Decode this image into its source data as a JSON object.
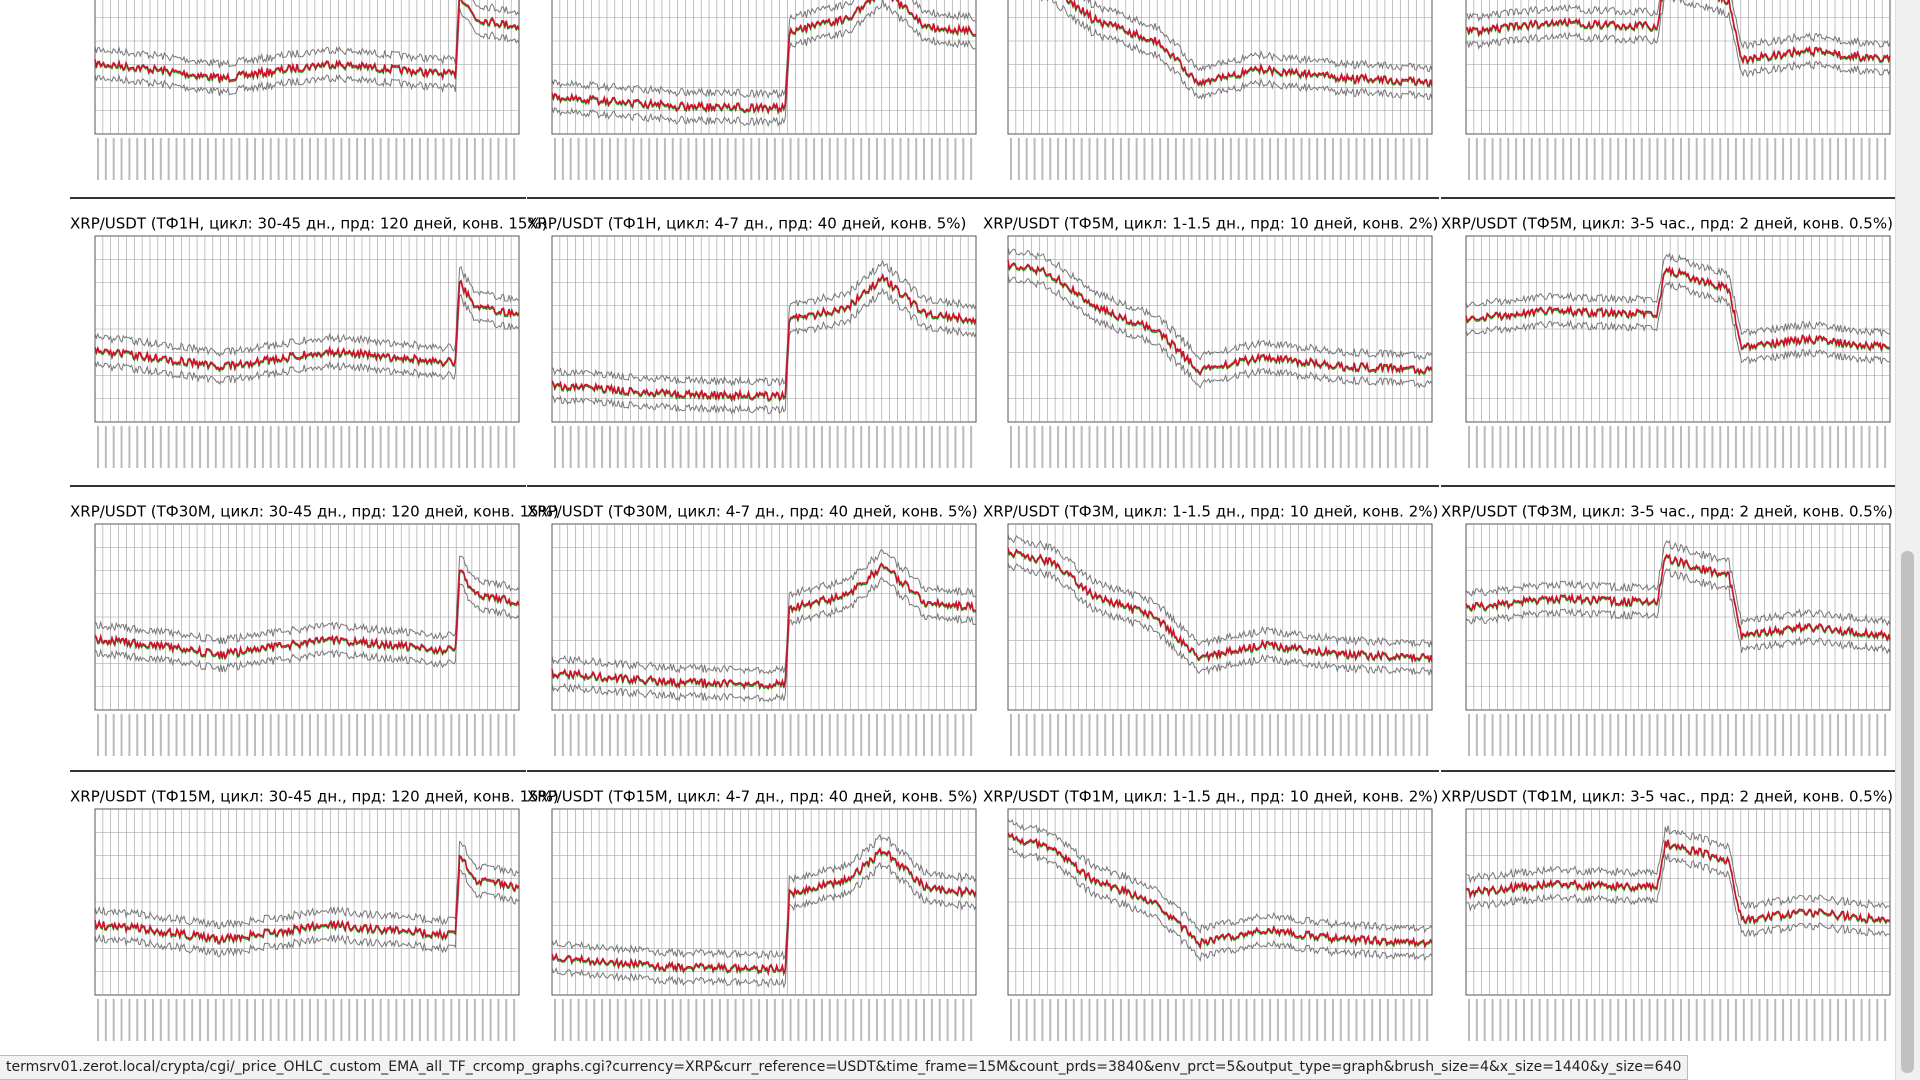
{
  "panels": [
    {
      "title": "XRP/USDT (ТФ1H, цикл: 30-45 дн., прд: 120 дней, конв. 15%)"
    },
    {
      "title": "XRP/USDT (ТФ1H, цикл: 4-7 дн., прд: 40 дней, конв. 5%)"
    },
    {
      "title": "XRP/USDT (ТФ5M, цикл: 1-1.5 дн., прд: 10 дней, конв. 2%)"
    },
    {
      "title": "XRP/USDT (ТФ5M, цикл: 3-5 час., прд: 2 дней, конв. 0.5%)"
    },
    {
      "title": "XRP/USDT (ТФ30M, цикл: 30-45 дн., прд: 120 дней, конв. 15%)"
    },
    {
      "title": "XRP/USDT (ТФ30M, цикл: 4-7 дн., прд: 40 дней, конв. 5%)"
    },
    {
      "title": "XRP/USDT (ТФ3M, цикл: 1-1.5 дн., прд: 10 дней, конв. 2%)"
    },
    {
      "title": "XRP/USDT (ТФ3M, цикл: 3-5 час., прд: 2 дней, конв. 0.5%)"
    },
    {
      "title": "XRP/USDT (ТФ15M, цикл: 30-45 дн., прд: 120 дней, конв. 15%)"
    },
    {
      "title": "XRP/USDT (ТФ15M, цикл: 4-7 дн., прд: 40 дней, конв. 5%)"
    },
    {
      "title": "XRP/USDT (ТФ1M, цикл: 1-1.5 дн., прд: 10 дней, конв. 2%)"
    },
    {
      "title": "XRP/USDT (ТФ1M, цикл: 3-5 час., прд: 2 дней, конв. 0.5%)"
    }
  ],
  "status_bar": {
    "url": "termsrv01.zerot.local/crypta/cgi/_price_OHLC_custom_EMA_all_TF_crcomp_graphs.cgi?currency=XRP&curr_reference=USDT&time_frame=15M&count_prds=3840&env_prct=5&output_type=graph&brush_size=4&x_size=1440&y_size=640"
  }
}
